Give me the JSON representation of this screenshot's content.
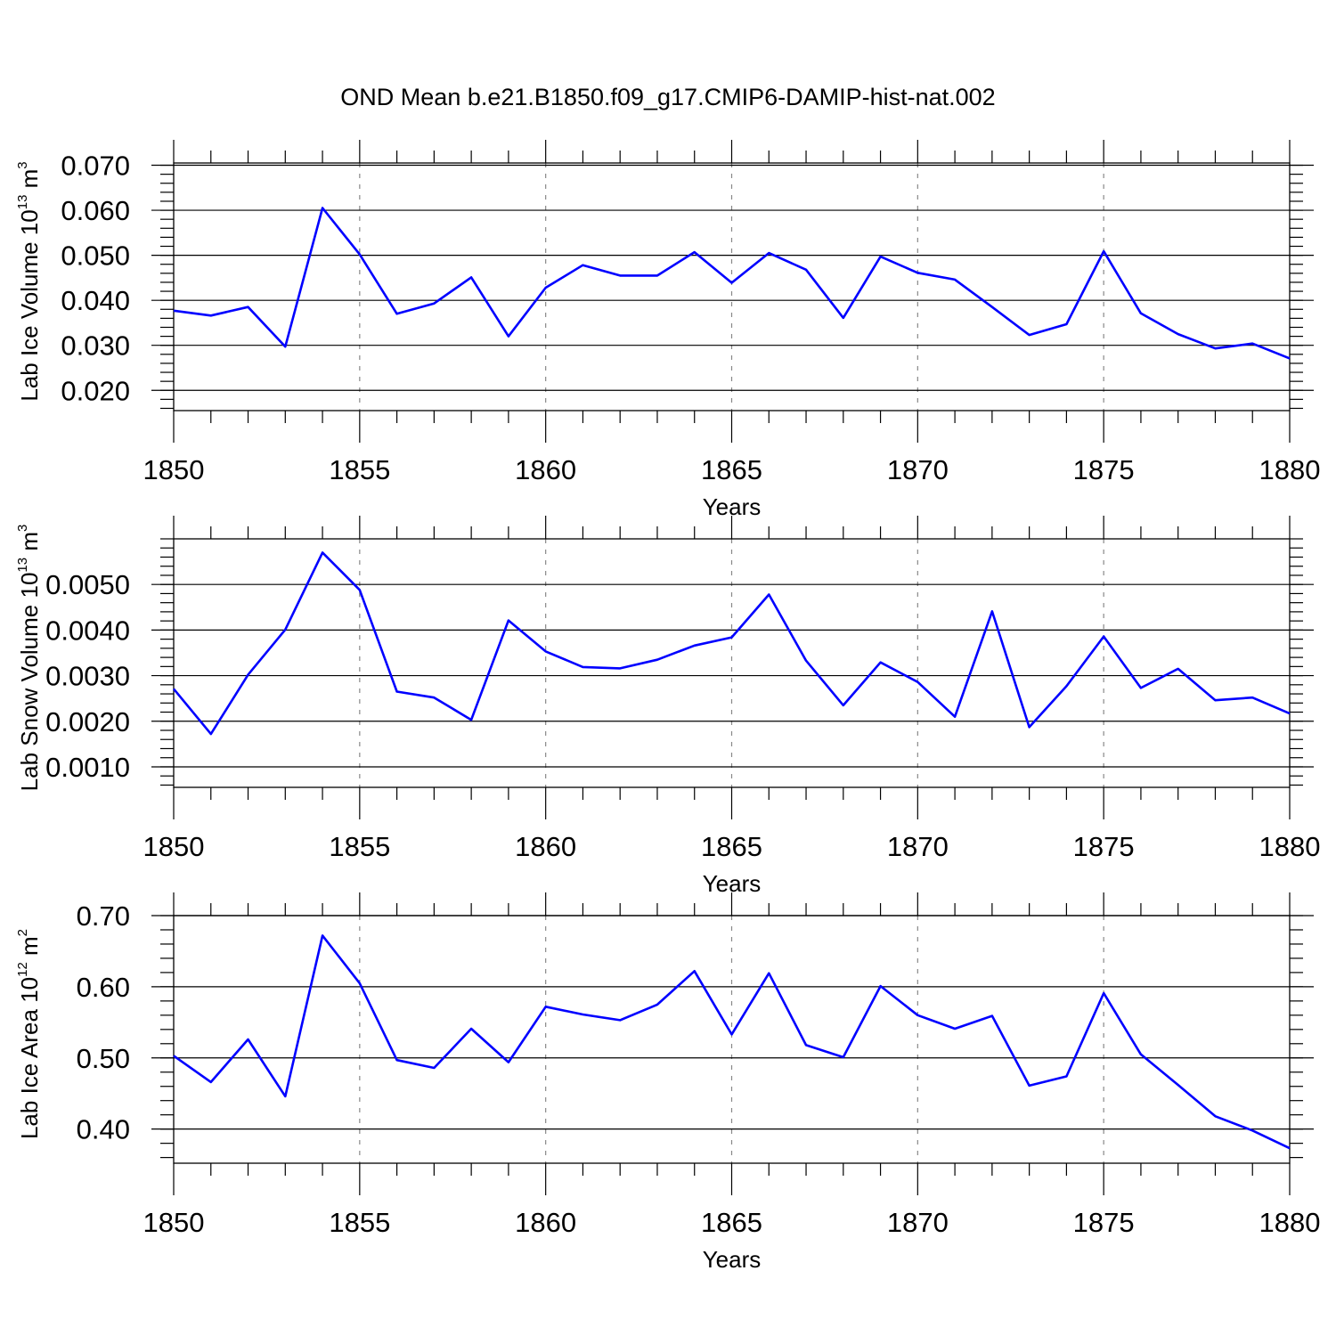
{
  "title": "OND Mean b.e21.B1850.f09_g17.CMIP6-DAMIP-hist-nat.002",
  "line_color": "#0000ff",
  "chart_data": [
    {
      "type": "line",
      "ylabel": {
        "main": "Lab Ice Volume 10",
        "exp": "13",
        "unit": " m",
        "unit_exp": "3"
      },
      "xlabel": "Years",
      "xlim": [
        1850,
        1880
      ],
      "ylim": [
        0.0155,
        0.0705
      ],
      "y_ticks": [
        0.02,
        0.03,
        0.04,
        0.05,
        0.06,
        0.07
      ],
      "y_tick_labels": [
        "0.020",
        "0.030",
        "0.040",
        "0.050",
        "0.060",
        "0.070"
      ],
      "x_ticks": [
        1850,
        1855,
        1860,
        1865,
        1870,
        1875,
        1880
      ],
      "x_tick_labels": [
        "1850",
        "1855",
        "1860",
        "1865",
        "1870",
        "1875",
        "1880"
      ],
      "x": [
        1850,
        1851,
        1852,
        1853,
        1854,
        1855,
        1856,
        1857,
        1858,
        1859,
        1860,
        1861,
        1862,
        1863,
        1864,
        1865,
        1866,
        1867,
        1868,
        1869,
        1870,
        1871,
        1872,
        1873,
        1874,
        1875,
        1876,
        1877,
        1878,
        1879,
        1880
      ],
      "series": [
        {
          "values": [
            0.0377,
            0.0366,
            0.0385,
            0.0297,
            0.0605,
            0.0502,
            0.037,
            0.0393,
            0.0451,
            0.032,
            0.0428,
            0.0478,
            0.0455,
            0.0455,
            0.0507,
            0.0439,
            0.0505,
            0.0468,
            0.0361,
            0.0497,
            0.0461,
            0.0446,
            0.0385,
            0.0323,
            0.0347,
            0.0509,
            0.0371,
            0.0325,
            0.0293,
            0.0304,
            0.0271
          ]
        }
      ]
    },
    {
      "type": "line",
      "ylabel": {
        "main": "Lab Snow Volume 10",
        "exp": "13",
        "unit": " m",
        "unit_exp": "3"
      },
      "xlabel": "Years",
      "xlim": [
        1850,
        1880
      ],
      "ylim": [
        0.00055,
        0.006
      ],
      "y_ticks": [
        0.001,
        0.002,
        0.003,
        0.004,
        0.005
      ],
      "y_tick_labels": [
        "0.0010",
        "0.0020",
        "0.0030",
        "0.0040",
        "0.0050"
      ],
      "x_ticks": [
        1850,
        1855,
        1860,
        1865,
        1870,
        1875,
        1880
      ],
      "x_tick_labels": [
        "1850",
        "1855",
        "1860",
        "1865",
        "1870",
        "1875",
        "1880"
      ],
      "x": [
        1850,
        1851,
        1852,
        1853,
        1854,
        1855,
        1856,
        1857,
        1858,
        1859,
        1860,
        1861,
        1862,
        1863,
        1864,
        1865,
        1866,
        1867,
        1868,
        1869,
        1870,
        1871,
        1872,
        1873,
        1874,
        1875,
        1876,
        1877,
        1878,
        1879,
        1880
      ],
      "series": [
        {
          "values": [
            0.00271,
            0.00172,
            0.00302,
            0.00401,
            0.0057,
            0.00488,
            0.00265,
            0.00252,
            0.00203,
            0.00421,
            0.00353,
            0.00319,
            0.00316,
            0.00335,
            0.00366,
            0.00384,
            0.00478,
            0.00333,
            0.00235,
            0.00329,
            0.00286,
            0.0021,
            0.00441,
            0.00187,
            0.00277,
            0.00386,
            0.00273,
            0.00315,
            0.00246,
            0.00252,
            0.00217
          ]
        }
      ]
    },
    {
      "type": "line",
      "ylabel": {
        "main": "Lab Ice Area 10",
        "exp": "12",
        "unit": " m",
        "unit_exp": "2"
      },
      "xlabel": "Years",
      "xlim": [
        1850,
        1880
      ],
      "ylim": [
        0.352,
        0.7
      ],
      "y_ticks": [
        0.4,
        0.5,
        0.6,
        0.7
      ],
      "y_tick_labels": [
        "0.40",
        "0.50",
        "0.60",
        "0.70"
      ],
      "x_ticks": [
        1850,
        1855,
        1860,
        1865,
        1870,
        1875,
        1880
      ],
      "x_tick_labels": [
        "1850",
        "1855",
        "1860",
        "1865",
        "1870",
        "1875",
        "1880"
      ],
      "x": [
        1850,
        1851,
        1852,
        1853,
        1854,
        1855,
        1856,
        1857,
        1858,
        1859,
        1860,
        1861,
        1862,
        1863,
        1864,
        1865,
        1866,
        1867,
        1868,
        1869,
        1870,
        1871,
        1872,
        1873,
        1874,
        1875,
        1876,
        1877,
        1878,
        1879,
        1880
      ],
      "series": [
        {
          "values": [
            0.503,
            0.466,
            0.526,
            0.446,
            0.672,
            0.605,
            0.497,
            0.486,
            0.541,
            0.494,
            0.572,
            0.561,
            0.553,
            0.575,
            0.622,
            0.533,
            0.619,
            0.518,
            0.501,
            0.601,
            0.56,
            0.541,
            0.559,
            0.461,
            0.474,
            0.591,
            0.505,
            0.462,
            0.418,
            0.398,
            0.373
          ]
        }
      ]
    }
  ]
}
